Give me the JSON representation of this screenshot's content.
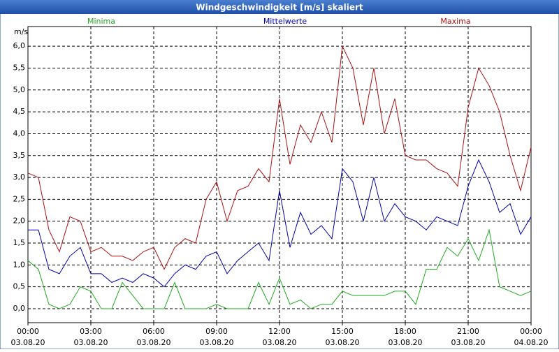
{
  "chart_data": {
    "type": "line",
    "title": "Windgeschwindigkeit [m/s] skaliert",
    "y_unit": "m/s",
    "x": [
      0,
      0.5,
      1,
      1.5,
      2,
      2.5,
      3,
      3.5,
      4,
      4.5,
      5,
      5.5,
      6,
      6.5,
      7,
      7.5,
      8,
      8.5,
      9,
      9.5,
      10,
      10.5,
      11,
      11.5,
      12,
      12.5,
      13,
      13.5,
      14,
      14.5,
      15,
      15.5,
      16,
      16.5,
      17,
      17.5,
      18,
      18.5,
      19,
      19.5,
      20,
      20.5,
      21,
      21.5,
      22,
      22.5,
      23,
      23.5,
      24
    ],
    "series": [
      {
        "name": "Minima",
        "color": "#22aa22",
        "values": [
          1.1,
          0.9,
          0.1,
          0.0,
          0.1,
          0.5,
          0.4,
          0.0,
          0.0,
          0.6,
          0.3,
          0.0,
          0.0,
          0.0,
          0.6,
          0.0,
          0.0,
          0.0,
          0.1,
          0.0,
          0.0,
          0.0,
          0.6,
          0.1,
          0.7,
          0.1,
          0.2,
          0.0,
          0.1,
          0.1,
          0.4,
          0.3,
          0.3,
          0.3,
          0.3,
          0.4,
          0.4,
          0.1,
          0.9,
          0.9,
          1.4,
          1.2,
          1.6,
          1.1,
          1.8,
          0.5,
          0.4,
          0.3,
          0.4
        ]
      },
      {
        "name": "Mittelwerte",
        "color": "#0000aa",
        "values": [
          1.8,
          1.8,
          0.9,
          0.8,
          1.2,
          1.4,
          0.8,
          0.8,
          0.6,
          0.7,
          0.6,
          0.8,
          0.7,
          0.5,
          0.8,
          1.0,
          0.9,
          1.2,
          1.3,
          0.8,
          1.1,
          1.3,
          1.5,
          1.1,
          2.7,
          1.4,
          2.2,
          1.7,
          1.9,
          1.6,
          3.2,
          2.9,
          2.0,
          3.0,
          2.0,
          2.4,
          2.1,
          2.0,
          1.8,
          2.1,
          2.0,
          1.9,
          2.8,
          3.4,
          2.9,
          2.2,
          2.4,
          1.7,
          2.1
        ]
      },
      {
        "name": "Maxima",
        "color": "#aa1111",
        "values": [
          3.1,
          3.0,
          1.8,
          1.3,
          2.1,
          2.0,
          1.3,
          1.4,
          1.2,
          1.2,
          1.1,
          1.3,
          1.4,
          0.9,
          1.4,
          1.6,
          1.5,
          2.5,
          2.9,
          2.0,
          2.7,
          2.8,
          3.2,
          2.9,
          4.8,
          3.3,
          4.2,
          3.8,
          4.5,
          3.8,
          6.0,
          5.5,
          4.2,
          5.5,
          4.0,
          4.8,
          3.5,
          3.4,
          3.4,
          3.2,
          3.1,
          2.8,
          4.6,
          5.5,
          5.1,
          4.5,
          3.5,
          2.7,
          3.7
        ]
      }
    ],
    "xlim": [
      0,
      24
    ],
    "xticks": [
      {
        "value": 0,
        "label": "00:00"
      },
      {
        "value": 3,
        "label": "03:00"
      },
      {
        "value": 6,
        "label": "06:00"
      },
      {
        "value": 9,
        "label": "09:00"
      },
      {
        "value": 12,
        "label": "12:00"
      },
      {
        "value": 15,
        "label": "15:00"
      },
      {
        "value": 18,
        "label": "18:00"
      },
      {
        "value": 21,
        "label": "21:00"
      },
      {
        "value": 24,
        "label": "00:00"
      }
    ],
    "xtick_dates": [
      "03.08.20",
      "03.08.20",
      "03.08.20",
      "03.08.20",
      "03.08.20",
      "03.08.20",
      "03.08.20",
      "03.08.20",
      "04.08.20"
    ],
    "ylim": [
      -0.32,
      6.45
    ],
    "yticks": [
      {
        "value": 0,
        "label": "0,0"
      },
      {
        "value": 0.5,
        "label": "0,5"
      },
      {
        "value": 1,
        "label": "1,0"
      },
      {
        "value": 1.5,
        "label": "1,5"
      },
      {
        "value": 2,
        "label": "2,0"
      },
      {
        "value": 2.5,
        "label": "2,5"
      },
      {
        "value": 3,
        "label": "3,0"
      },
      {
        "value": 3.5,
        "label": "3,5"
      },
      {
        "value": 4,
        "label": "4,0"
      },
      {
        "value": 4.5,
        "label": "4,5"
      },
      {
        "value": 5,
        "label": "5,0"
      },
      {
        "value": 5.5,
        "label": "5,5"
      },
      {
        "value": 6,
        "label": "6,0"
      }
    ],
    "grid": true
  }
}
